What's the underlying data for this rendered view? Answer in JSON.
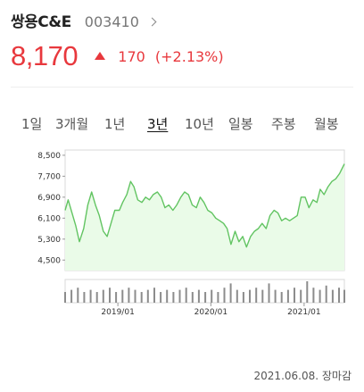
{
  "stock": {
    "name": "쌍용C&E",
    "code": "003410",
    "price": "8,170",
    "change": "170",
    "change_pct": "(+2.13%)",
    "color_up": "#e8383d"
  },
  "tabs": [
    {
      "label": "1일",
      "active": false
    },
    {
      "label": "3개월",
      "active": false
    },
    {
      "label": "1년",
      "active": false
    },
    {
      "label": "3년",
      "active": true
    },
    {
      "label": "10년",
      "active": false
    },
    {
      "label": "일봉",
      "active": false
    },
    {
      "label": "주봉",
      "active": false
    },
    {
      "label": "월봉",
      "active": false
    }
  ],
  "footer": "2021.06.08. 장마감",
  "chart_data": {
    "type": "area",
    "line_color": "#62c462",
    "fill_color": "#eafbe8",
    "ylim": [
      4100,
      8700
    ],
    "y_ticks": [
      8500,
      7700,
      6900,
      6100,
      5300,
      4500
    ],
    "y_tick_labels": [
      "8,500",
      "7,700",
      "6,900",
      "6,100",
      "5,300",
      "4,500"
    ],
    "x_range": [
      "2018-06-08",
      "2021-06-08"
    ],
    "x_ticks": [
      "2019-01-01",
      "2020-01-01",
      "2021-01-01"
    ],
    "x_tick_labels": [
      "2019/01",
      "2020/01",
      "2021/01"
    ],
    "series": [
      {
        "x": [
          "2018-06-08",
          "2018-06-20",
          "2018-07-05",
          "2018-07-20",
          "2018-08-03",
          "2018-08-20",
          "2018-09-05",
          "2018-09-20",
          "2018-10-05",
          "2018-10-20",
          "2018-11-05",
          "2018-11-20",
          "2018-12-05",
          "2018-12-20",
          "2019-01-07",
          "2019-01-20",
          "2019-02-05",
          "2019-02-20",
          "2019-03-05",
          "2019-03-20",
          "2019-04-05",
          "2019-04-20",
          "2019-05-05",
          "2019-05-20",
          "2019-06-05",
          "2019-06-20",
          "2019-07-05",
          "2019-07-20",
          "2019-08-05",
          "2019-08-20",
          "2019-09-05",
          "2019-09-20",
          "2019-10-05",
          "2019-10-20",
          "2019-11-05",
          "2019-11-20",
          "2019-12-05",
          "2019-12-20",
          "2020-01-05",
          "2020-01-20",
          "2020-02-05",
          "2020-02-20",
          "2020-03-05",
          "2020-03-20",
          "2020-04-05",
          "2020-04-20",
          "2020-05-05",
          "2020-05-20",
          "2020-06-05",
          "2020-06-20",
          "2020-07-05",
          "2020-07-20",
          "2020-08-05",
          "2020-08-20",
          "2020-09-05",
          "2020-09-20",
          "2020-10-05",
          "2020-10-20",
          "2020-11-05",
          "2020-11-20",
          "2020-12-05",
          "2020-12-20",
          "2021-01-05",
          "2021-01-20",
          "2021-02-05",
          "2021-02-20",
          "2021-03-05",
          "2021-03-20",
          "2021-04-05",
          "2021-04-20",
          "2021-05-05",
          "2021-05-20",
          "2021-06-08"
        ],
        "y": [
          6400,
          6800,
          6300,
          5800,
          5200,
          5700,
          6600,
          7100,
          6600,
          6200,
          5600,
          5400,
          5900,
          6400,
          6400,
          6700,
          7000,
          7500,
          7300,
          6800,
          6700,
          6900,
          6800,
          7000,
          7100,
          6900,
          6500,
          6600,
          6400,
          6600,
          6900,
          7100,
          7000,
          6600,
          6500,
          6900,
          6700,
          6400,
          6300,
          6100,
          6000,
          5900,
          5700,
          5100,
          5600,
          5200,
          5400,
          5000,
          5400,
          5600,
          5700,
          5900,
          5700,
          6200,
          6400,
          6300,
          6000,
          6100,
          6000,
          6100,
          6200,
          6900,
          6900,
          6500,
          6800,
          6700,
          7200,
          7000,
          7300,
          7500,
          7600,
          7800,
          8170
        ]
      }
    ],
    "volume": {
      "x": [
        "2018-06-08",
        "2018-07-03",
        "2018-07-28",
        "2018-08-22",
        "2018-09-16",
        "2018-10-11",
        "2018-11-05",
        "2018-11-30",
        "2018-12-25",
        "2019-01-19",
        "2019-02-13",
        "2019-03-10",
        "2019-04-04",
        "2019-04-29",
        "2019-05-24",
        "2019-06-18",
        "2019-07-13",
        "2019-08-07",
        "2019-09-01",
        "2019-09-26",
        "2019-10-21",
        "2019-11-15",
        "2019-12-10",
        "2020-01-04",
        "2020-01-29",
        "2020-02-23",
        "2020-03-19",
        "2020-04-13",
        "2020-05-08",
        "2020-06-02",
        "2020-06-27",
        "2020-07-22",
        "2020-08-16",
        "2020-09-10",
        "2020-10-05",
        "2020-10-30",
        "2020-11-24",
        "2020-12-19",
        "2021-01-13",
        "2021-02-07",
        "2021-03-04",
        "2021-03-29",
        "2021-04-23",
        "2021-05-18",
        "2021-06-08"
      ],
      "y": [
        0.5,
        0.6,
        0.7,
        0.5,
        0.6,
        0.5,
        0.6,
        0.7,
        0.5,
        0.6,
        0.7,
        0.6,
        0.5,
        0.6,
        0.7,
        0.5,
        0.6,
        0.5,
        0.6,
        0.7,
        0.5,
        0.6,
        0.5,
        0.6,
        0.5,
        0.7,
        0.9,
        0.6,
        0.5,
        0.6,
        0.7,
        0.6,
        0.9,
        0.6,
        0.5,
        0.6,
        0.7,
        0.6,
        1.0,
        0.7,
        0.6,
        0.8,
        0.6,
        0.7,
        0.6
      ]
    }
  }
}
